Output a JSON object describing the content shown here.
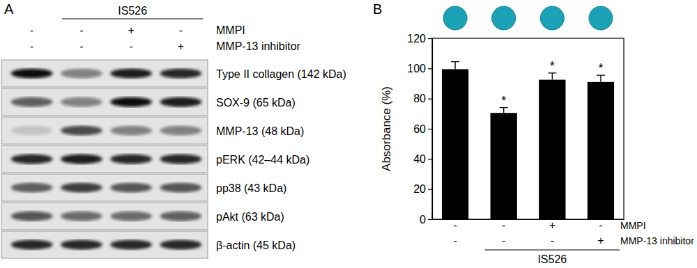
{
  "panel_labels": [
    "A",
    "B"
  ],
  "blot": {
    "group": {
      "label": "IS526",
      "members": [
        false,
        true,
        true,
        true
      ]
    },
    "conditions": [
      {
        "name": "MMPI",
        "values": [
          "-",
          "-",
          "+",
          "-"
        ]
      },
      {
        "name": "MMP-13 inhibitor",
        "values": [
          "-",
          "-",
          "-",
          "+"
        ]
      }
    ],
    "rows": [
      {
        "label": "Type II collagen (142 kDa)",
        "intensity": [
          0.95,
          0.45,
          0.9,
          0.85
        ]
      },
      {
        "label": "SOX-9 (65 kDa)",
        "intensity": [
          0.6,
          0.45,
          0.95,
          0.9
        ]
      },
      {
        "label": "MMP-13 (48 kDa)",
        "intensity": [
          0.15,
          0.7,
          0.45,
          0.45
        ]
      },
      {
        "label": "pERK (42–44 kDa)",
        "intensity": [
          0.85,
          0.9,
          0.85,
          0.85
        ]
      },
      {
        "label": "pp38 (43 kDa)",
        "intensity": [
          0.6,
          0.75,
          0.65,
          0.65
        ]
      },
      {
        "label": "pAkt (63 kDa)",
        "intensity": [
          0.65,
          0.55,
          0.55,
          0.6
        ]
      },
      {
        "label": "β-actin (45 kDa)",
        "intensity": [
          0.85,
          0.85,
          0.85,
          0.85
        ]
      }
    ]
  },
  "chart_data": {
    "type": "bar",
    "y_label": "Absorbance (%)",
    "categories": [
      null,
      null,
      null,
      null
    ],
    "values": [
      99.5,
      70.5,
      92.5,
      91
    ],
    "errors": [
      5,
      3.5,
      4.5,
      4.5
    ],
    "significance": [
      null,
      "*",
      "*",
      "*"
    ],
    "color": "#000000",
    "ylim": [
      0,
      120
    ],
    "yticks": [
      0,
      20,
      40,
      60,
      80,
      100,
      120
    ],
    "group": {
      "label": "IS526",
      "members": [
        false,
        true,
        true,
        true
      ]
    },
    "conditions": [
      {
        "name": "MMPI",
        "values": [
          "-",
          "-",
          "+",
          "-"
        ]
      },
      {
        "name": "MMP-13 inhibitor",
        "values": [
          "-",
          "-",
          "-",
          "+"
        ]
      }
    ]
  }
}
